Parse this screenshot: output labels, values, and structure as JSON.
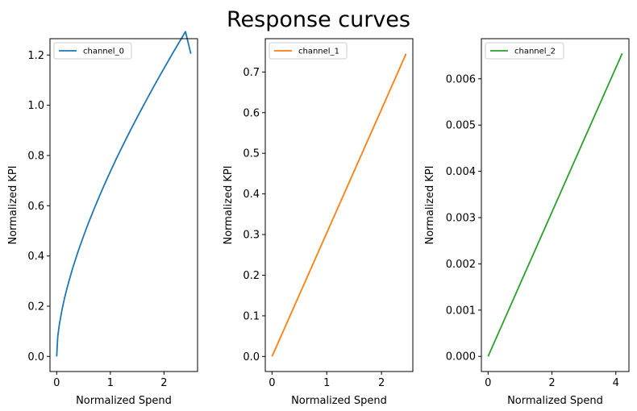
{
  "figure": {
    "title": "Response curves"
  },
  "chart_data": [
    {
      "type": "line",
      "xlabel": "Normalized Spend",
      "ylabel": "Normalized KPI",
      "xlim": [
        -0.125,
        2.625
      ],
      "ylim": [
        -0.06,
        1.265
      ],
      "xticks": [
        0,
        1,
        2
      ],
      "xtick_labels": [
        "0",
        "1",
        "2"
      ],
      "yticks": [
        0.0,
        0.2,
        0.4,
        0.6,
        0.8,
        1.0,
        1.2
      ],
      "ytick_labels": [
        "0.0",
        "0.2",
        "0.4",
        "0.6",
        "0.8",
        "1.0",
        "1.2"
      ],
      "legend_position": "top-left",
      "series": [
        {
          "name": "channel_0",
          "color": "#1f77b4",
          "x": [
            0,
            0.02,
            0.05,
            0.1,
            0.15,
            0.2,
            0.3,
            0.4,
            0.5,
            0.6,
            0.7,
            0.8,
            0.9,
            1.0,
            1.1,
            1.2,
            1.3,
            1.4,
            1.5,
            1.6,
            1.7,
            1.8,
            1.9,
            2.0,
            2.1,
            2.2,
            2.3,
            2.4,
            2.5
          ],
          "y": [
            0.0,
            0.08,
            0.128,
            0.187,
            0.236,
            0.278,
            0.353,
            0.419,
            0.479,
            0.536,
            0.589,
            0.64,
            0.689,
            0.736,
            0.782,
            0.826,
            0.869,
            0.911,
            0.952,
            0.992,
            1.032,
            1.071,
            1.109,
            1.147,
            1.184,
            1.221,
            1.257,
            1.293,
            1.205
          ]
        }
      ]
    },
    {
      "type": "line",
      "xlabel": "Normalized Spend",
      "ylabel": "Normalized KPI",
      "xlim": [
        -0.123,
        2.573
      ],
      "ylim": [
        -0.037,
        0.782
      ],
      "xticks": [
        0,
        1,
        2
      ],
      "xtick_labels": [
        "0",
        "1",
        "2"
      ],
      "yticks": [
        0.0,
        0.1,
        0.2,
        0.3,
        0.4,
        0.5,
        0.6,
        0.7
      ],
      "ytick_labels": [
        "0.0",
        "0.1",
        "0.2",
        "0.3",
        "0.4",
        "0.5",
        "0.6",
        "0.7"
      ],
      "legend_position": "top-left",
      "series": [
        {
          "name": "channel_1",
          "color": "#ff7f0e",
          "x": [
            0,
            0.5,
            1.0,
            1.5,
            2.0,
            2.45
          ],
          "y": [
            0.0,
            0.152,
            0.304,
            0.456,
            0.608,
            0.745
          ]
        }
      ]
    },
    {
      "type": "line",
      "xlabel": "Normalized Spend",
      "ylabel": "Normalized KPI",
      "xlim": [
        -0.21,
        4.41
      ],
      "ylim": [
        -0.000327,
        0.006867
      ],
      "xticks": [
        0,
        2,
        4
      ],
      "xtick_labels": [
        "0",
        "2",
        "4"
      ],
      "yticks": [
        0.0,
        0.001,
        0.002,
        0.003,
        0.004,
        0.005,
        0.006
      ],
      "ytick_labels": [
        "0.000",
        "0.001",
        "0.002",
        "0.003",
        "0.004",
        "0.005",
        "0.006"
      ],
      "legend_position": "top-left",
      "series": [
        {
          "name": "channel_2",
          "color": "#2ca02c",
          "x": [
            0,
            1.0,
            2.0,
            3.0,
            4.2
          ],
          "y": [
            0.0,
            0.00156,
            0.00312,
            0.00468,
            0.00655
          ]
        }
      ]
    }
  ]
}
